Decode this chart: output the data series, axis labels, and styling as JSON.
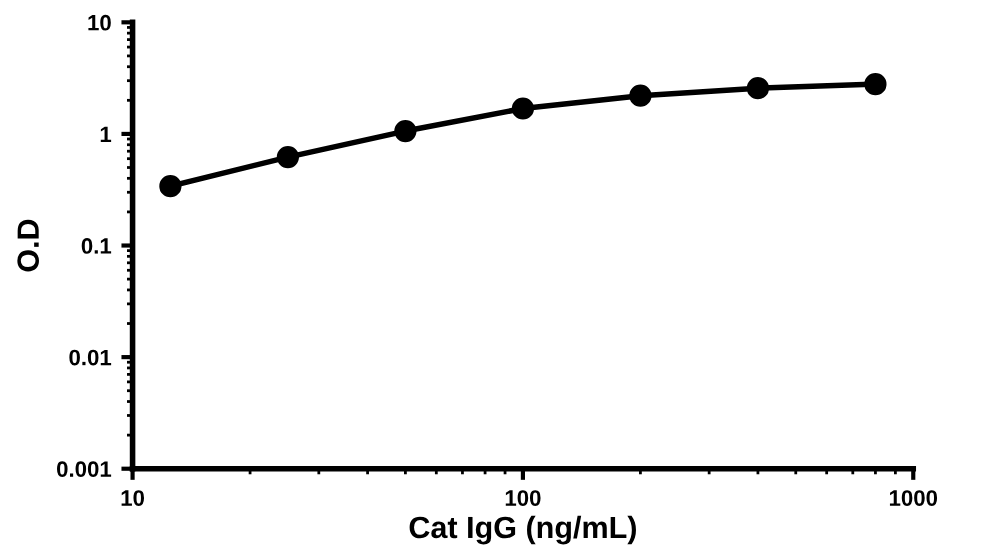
{
  "chart_data": {
    "type": "line",
    "xlabel": "Cat IgG (ng/mL)",
    "ylabel": "O.D",
    "log": "xy",
    "marker": "circle",
    "line_style": "solid",
    "grid": false,
    "legend": false,
    "x": [
      12.5,
      25,
      50,
      100,
      200,
      400,
      800
    ],
    "series": [
      {
        "color": "#000000",
        "values": [
          0.34,
          0.62,
          1.06,
          1.69,
          2.2,
          2.57,
          2.79
        ]
      }
    ],
    "xlim": [
      10,
      1000
    ],
    "xticks": [
      10,
      100,
      1000
    ],
    "ylim": [
      0.001,
      10
    ],
    "yticks": [
      0.001,
      0.01,
      0.1,
      1,
      10
    ]
  }
}
